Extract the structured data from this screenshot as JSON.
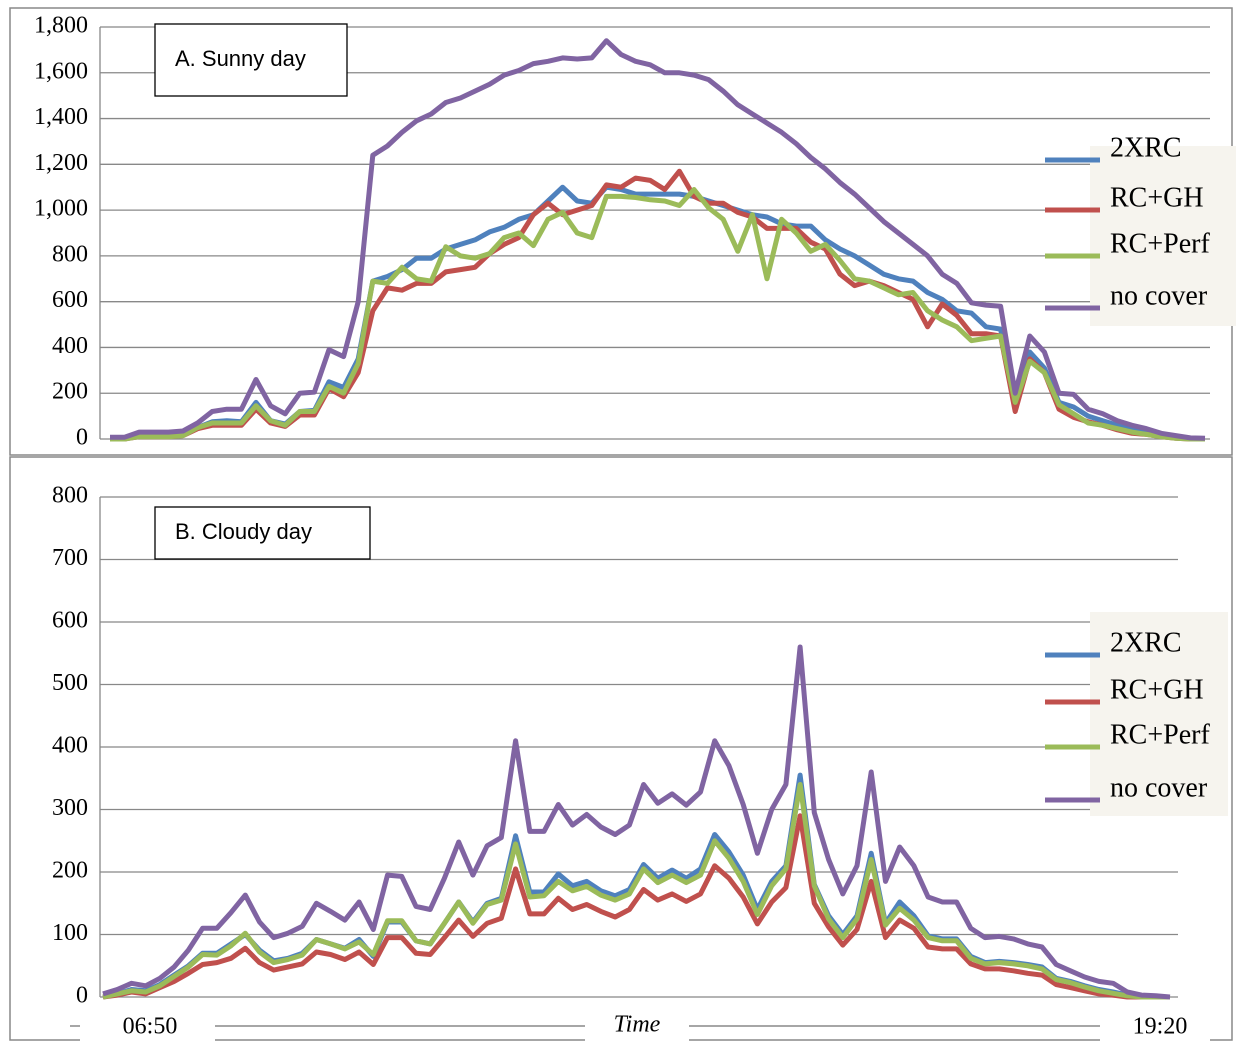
{
  "chart_data": [
    {
      "type": "line",
      "title": "A. Sunny day",
      "grid": true,
      "legend": "right",
      "ylim": [
        0,
        1800
      ],
      "yticks": [
        0,
        200,
        400,
        600,
        800,
        {
          "value": 1000,
          "label": "1,000"
        },
        {
          "value": 1200,
          "label": "1,200"
        },
        {
          "value": 1400,
          "label": "1,400"
        },
        {
          "value": 1600,
          "label": "1,600"
        },
        {
          "value": 1800,
          "label": "1,800"
        }
      ],
      "series": [
        {
          "name": "2XRC",
          "color": "#4f81bd",
          "values": [
            2,
            2,
            15,
            15,
            15,
            20,
            50,
            75,
            80,
            75,
            160,
            80,
            65,
            120,
            125,
            250,
            225,
            350,
            690,
            710,
            740,
            790,
            790,
            830,
            850,
            870,
            905,
            925,
            960,
            980,
            1040,
            1100,
            1040,
            1030,
            1100,
            1090,
            1070,
            1070,
            1070,
            1070,
            1060,
            1040,
            1020,
            1000,
            980,
            970,
            940,
            930,
            930,
            870,
            830,
            800,
            760,
            720,
            700,
            690,
            640,
            610,
            560,
            550,
            490,
            480,
            150,
            380,
            310,
            160,
            140,
            100,
            80,
            60,
            40,
            30,
            15,
            5,
            3,
            2
          ]
        },
        {
          "name": "RC+GH",
          "color": "#c0504d",
          "values": [
            0,
            0,
            10,
            10,
            10,
            15,
            45,
            60,
            60,
            60,
            130,
            70,
            55,
            105,
            105,
            220,
            185,
            290,
            560,
            660,
            650,
            680,
            680,
            730,
            740,
            750,
            810,
            850,
            880,
            980,
            1030,
            980,
            1000,
            1020,
            1110,
            1100,
            1140,
            1130,
            1090,
            1170,
            1060,
            1030,
            1030,
            990,
            970,
            920,
            920,
            920,
            860,
            830,
            720,
            670,
            690,
            670,
            640,
            610,
            490,
            590,
            540,
            460,
            460,
            450,
            120,
            350,
            290,
            130,
            95,
            75,
            60,
            40,
            25,
            20,
            10,
            3,
            0,
            0
          ]
        },
        {
          "name": "RC+Perf",
          "color": "#9bbb59",
          "values": [
            0,
            0,
            10,
            10,
            10,
            15,
            50,
            70,
            70,
            70,
            145,
            80,
            60,
            120,
            120,
            230,
            200,
            330,
            690,
            680,
            750,
            700,
            690,
            840,
            800,
            790,
            810,
            880,
            900,
            845,
            960,
            990,
            900,
            880,
            1060,
            1060,
            1055,
            1045,
            1040,
            1020,
            1090,
            1010,
            960,
            820,
            980,
            700,
            960,
            900,
            820,
            850,
            780,
            700,
            690,
            660,
            630,
            640,
            560,
            520,
            490,
            430,
            440,
            450,
            160,
            340,
            290,
            150,
            110,
            70,
            60,
            45,
            30,
            20,
            10,
            3,
            0,
            0
          ]
        },
        {
          "name": "no cover",
          "color": "#8064a2",
          "values": [
            8,
            8,
            30,
            30,
            30,
            35,
            70,
            120,
            130,
            130,
            260,
            145,
            110,
            200,
            205,
            390,
            360,
            600,
            1240,
            1280,
            1340,
            1390,
            1420,
            1470,
            1490,
            1520,
            1550,
            1590,
            1610,
            1640,
            1650,
            1665,
            1660,
            1665,
            1740,
            1680,
            1650,
            1635,
            1600,
            1600,
            1590,
            1570,
            1520,
            1460,
            1420,
            1380,
            1340,
            1290,
            1230,
            1180,
            1120,
            1070,
            1010,
            950,
            900,
            850,
            800,
            720,
            680,
            595,
            585,
            580,
            200,
            450,
            380,
            200,
            195,
            130,
            110,
            80,
            60,
            45,
            25,
            15,
            5,
            3
          ]
        }
      ]
    },
    {
      "type": "line",
      "title": "B. Cloudy day",
      "grid": true,
      "legend": "right",
      "x_label": "Time",
      "categories": [
        "06:50",
        null,
        null,
        null,
        null,
        null,
        null,
        null,
        null,
        null,
        null,
        null,
        null,
        null,
        null,
        null,
        null,
        null,
        null,
        null,
        null,
        null,
        null,
        null,
        null,
        null,
        null,
        null,
        null,
        null,
        null,
        null,
        null,
        null,
        null,
        null,
        null,
        null,
        null,
        null,
        null,
        null,
        null,
        null,
        null,
        null,
        null,
        null,
        null,
        null,
        null,
        null,
        null,
        null,
        null,
        null,
        null,
        null,
        null,
        null,
        null,
        null,
        null,
        null,
        null,
        null,
        null,
        null,
        null,
        null,
        null,
        null,
        null,
        null,
        null,
        "19:20"
      ],
      "ylim": [
        0,
        800
      ],
      "yticks": [
        0,
        100,
        200,
        300,
        400,
        500,
        600,
        700,
        800
      ],
      "series": [
        {
          "name": "2XRC",
          "color": "#4f81bd",
          "values": [
            0,
            5,
            12,
            10,
            20,
            35,
            50,
            70,
            70,
            85,
            100,
            75,
            58,
            62,
            70,
            92,
            85,
            78,
            92,
            65,
            120,
            120,
            90,
            85,
            118,
            152,
            120,
            150,
            158,
            258,
            168,
            168,
            197,
            178,
            185,
            170,
            162,
            172,
            212,
            190,
            203,
            190,
            205,
            260,
            232,
            195,
            140,
            185,
            210,
            355,
            180,
            130,
            100,
            130,
            230,
            118,
            152,
            130,
            98,
            93,
            93,
            65,
            55,
            57,
            55,
            52,
            48,
            30,
            25,
            18,
            12,
            8,
            3,
            0,
            0,
            0
          ]
        },
        {
          "name": "RC+GH",
          "color": "#c0504d",
          "values": [
            0,
            3,
            8,
            5,
            15,
            25,
            38,
            52,
            55,
            62,
            78,
            55,
            43,
            48,
            53,
            72,
            68,
            60,
            72,
            52,
            95,
            95,
            70,
            68,
            95,
            123,
            97,
            118,
            126,
            205,
            133,
            133,
            158,
            140,
            148,
            137,
            128,
            140,
            172,
            155,
            165,
            153,
            165,
            210,
            190,
            160,
            117,
            152,
            175,
            290,
            150,
            112,
            83,
            108,
            185,
            95,
            123,
            110,
            80,
            77,
            77,
            53,
            45,
            45,
            42,
            38,
            35,
            20,
            15,
            10,
            5,
            3,
            0,
            0,
            0,
            0
          ]
        },
        {
          "name": "RC+Perf",
          "color": "#9bbb59",
          "values": [
            0,
            5,
            10,
            8,
            18,
            33,
            48,
            68,
            67,
            82,
            102,
            72,
            55,
            60,
            67,
            92,
            85,
            77,
            88,
            68,
            122,
            122,
            90,
            85,
            118,
            152,
            118,
            148,
            155,
            245,
            160,
            162,
            185,
            170,
            177,
            163,
            155,
            165,
            205,
            183,
            195,
            183,
            195,
            250,
            222,
            185,
            132,
            178,
            205,
            340,
            178,
            125,
            95,
            125,
            220,
            115,
            142,
            123,
            95,
            90,
            90,
            62,
            53,
            55,
            53,
            50,
            45,
            28,
            23,
            16,
            10,
            6,
            2,
            0,
            0,
            0
          ]
        },
        {
          "name": "no cover",
          "color": "#8064a2",
          "values": [
            5,
            12,
            22,
            18,
            30,
            48,
            75,
            110,
            110,
            135,
            163,
            120,
            95,
            102,
            113,
            150,
            137,
            123,
            152,
            108,
            195,
            193,
            145,
            140,
            190,
            248,
            195,
            242,
            255,
            410,
            265,
            265,
            308,
            275,
            292,
            272,
            260,
            275,
            340,
            310,
            325,
            307,
            328,
            410,
            370,
            308,
            230,
            300,
            340,
            560,
            295,
            220,
            165,
            210,
            360,
            185,
            240,
            210,
            160,
            152,
            152,
            110,
            95,
            97,
            93,
            85,
            80,
            52,
            42,
            32,
            25,
            22,
            8,
            3,
            2,
            0
          ]
        }
      ]
    }
  ]
}
